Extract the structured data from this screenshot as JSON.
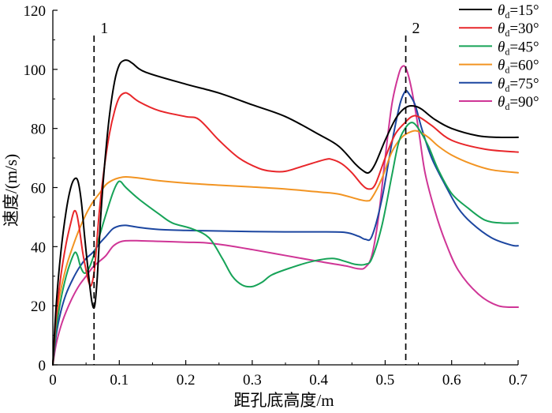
{
  "chart_data": {
    "type": "line",
    "title": "",
    "xlabel": "距孔底高度/m",
    "ylabel": "速度/(m/s)",
    "xlim": [
      0,
      0.7
    ],
    "ylim": [
      0,
      120
    ],
    "xticks": [
      0,
      0.1,
      0.2,
      0.3,
      0.4,
      0.5,
      0.6,
      0.7
    ],
    "yticks": [
      0,
      20,
      40,
      60,
      80,
      100,
      120
    ],
    "xtick_labels": [
      "0",
      "0.1",
      "0.2",
      "0.3",
      "0.4",
      "0.5",
      "0.6",
      "0.7"
    ],
    "ytick_labels": [
      "0",
      "20",
      "40",
      "60",
      "80",
      "100",
      "120"
    ],
    "grid": false,
    "legend_position": "top-right",
    "annotations": [
      {
        "label": "1",
        "x": 0.062,
        "style": "dashed-vertical"
      },
      {
        "label": "2",
        "x": 0.531,
        "style": "dashed-vertical"
      }
    ],
    "series": [
      {
        "name": "θd=15°",
        "legend_main": "θ",
        "legend_sub": "d",
        "legend_rest": "=15°",
        "color": "#000000",
        "points": [
          [
            0,
            0
          ],
          [
            0.005,
            20
          ],
          [
            0.012,
            38
          ],
          [
            0.02,
            52
          ],
          [
            0.027,
            60
          ],
          [
            0.033,
            63
          ],
          [
            0.038,
            62
          ],
          [
            0.043,
            55
          ],
          [
            0.048,
            43
          ],
          [
            0.054,
            30
          ],
          [
            0.059,
            21
          ],
          [
            0.063,
            20
          ],
          [
            0.067,
            30
          ],
          [
            0.072,
            50
          ],
          [
            0.078,
            68
          ],
          [
            0.085,
            84
          ],
          [
            0.093,
            96
          ],
          [
            0.1,
            101.5
          ],
          [
            0.107,
            103
          ],
          [
            0.113,
            103
          ],
          [
            0.12,
            102
          ],
          [
            0.14,
            99
          ],
          [
            0.2,
            95
          ],
          [
            0.25,
            92
          ],
          [
            0.3,
            88
          ],
          [
            0.35,
            84
          ],
          [
            0.4,
            78
          ],
          [
            0.43,
            74
          ],
          [
            0.455,
            68
          ],
          [
            0.465,
            66
          ],
          [
            0.475,
            65
          ],
          [
            0.485,
            68
          ],
          [
            0.5,
            76
          ],
          [
            0.515,
            83
          ],
          [
            0.525,
            86
          ],
          [
            0.535,
            87.5
          ],
          [
            0.545,
            87.5
          ],
          [
            0.555,
            86.5
          ],
          [
            0.575,
            83
          ],
          [
            0.6,
            80
          ],
          [
            0.64,
            77.5
          ],
          [
            0.67,
            77
          ],
          [
            0.7,
            77
          ]
        ]
      },
      {
        "name": "θd=30°",
        "legend_main": "θ",
        "legend_sub": "d",
        "legend_rest": "=30°",
        "color": "#e8262a",
        "points": [
          [
            0,
            0
          ],
          [
            0.005,
            16
          ],
          [
            0.012,
            30
          ],
          [
            0.02,
            41
          ],
          [
            0.027,
            48
          ],
          [
            0.032,
            52
          ],
          [
            0.036,
            51
          ],
          [
            0.04,
            46
          ],
          [
            0.045,
            38
          ],
          [
            0.05,
            32
          ],
          [
            0.054,
            28
          ],
          [
            0.058,
            27
          ],
          [
            0.063,
            33
          ],
          [
            0.07,
            52
          ],
          [
            0.077,
            66
          ],
          [
            0.085,
            78
          ],
          [
            0.093,
            86
          ],
          [
            0.1,
            90.5
          ],
          [
            0.108,
            92
          ],
          [
            0.115,
            91.5
          ],
          [
            0.13,
            89
          ],
          [
            0.16,
            86
          ],
          [
            0.2,
            84
          ],
          [
            0.22,
            83
          ],
          [
            0.25,
            76
          ],
          [
            0.28,
            70
          ],
          [
            0.31,
            66.5
          ],
          [
            0.33,
            65.5
          ],
          [
            0.35,
            65.5
          ],
          [
            0.38,
            67.5
          ],
          [
            0.41,
            69.5
          ],
          [
            0.42,
            69.5
          ],
          [
            0.435,
            68
          ],
          [
            0.45,
            65
          ],
          [
            0.465,
            61
          ],
          [
            0.475,
            59.5
          ],
          [
            0.485,
            61
          ],
          [
            0.5,
            70
          ],
          [
            0.515,
            78
          ],
          [
            0.53,
            82
          ],
          [
            0.54,
            84
          ],
          [
            0.55,
            84
          ],
          [
            0.57,
            81
          ],
          [
            0.6,
            76
          ],
          [
            0.65,
            73
          ],
          [
            0.7,
            72
          ]
        ]
      },
      {
        "name": "θd=45°",
        "legend_main": "θ",
        "legend_sub": "d",
        "legend_rest": "=45°",
        "color": "#17a358",
        "points": [
          [
            0,
            0
          ],
          [
            0.005,
            12
          ],
          [
            0.012,
            22
          ],
          [
            0.02,
            30
          ],
          [
            0.027,
            35
          ],
          [
            0.033,
            38
          ],
          [
            0.037,
            37
          ],
          [
            0.042,
            33
          ],
          [
            0.048,
            31
          ],
          [
            0.055,
            33
          ],
          [
            0.063,
            38
          ],
          [
            0.072,
            45
          ],
          [
            0.08,
            51
          ],
          [
            0.09,
            58
          ],
          [
            0.097,
            61.5
          ],
          [
            0.102,
            62
          ],
          [
            0.11,
            60
          ],
          [
            0.13,
            56
          ],
          [
            0.16,
            51
          ],
          [
            0.18,
            48
          ],
          [
            0.21,
            46
          ],
          [
            0.235,
            43
          ],
          [
            0.255,
            36
          ],
          [
            0.27,
            30
          ],
          [
            0.285,
            27
          ],
          [
            0.3,
            26.5
          ],
          [
            0.315,
            28
          ],
          [
            0.33,
            30.5
          ],
          [
            0.36,
            33
          ],
          [
            0.39,
            35
          ],
          [
            0.42,
            36
          ],
          [
            0.44,
            35
          ],
          [
            0.455,
            34
          ],
          [
            0.47,
            34
          ],
          [
            0.48,
            36
          ],
          [
            0.495,
            47
          ],
          [
            0.51,
            64
          ],
          [
            0.52,
            75
          ],
          [
            0.53,
            80
          ],
          [
            0.54,
            82
          ],
          [
            0.55,
            80
          ],
          [
            0.565,
            74
          ],
          [
            0.58,
            66
          ],
          [
            0.6,
            58
          ],
          [
            0.625,
            53
          ],
          [
            0.65,
            49
          ],
          [
            0.675,
            48
          ],
          [
            0.7,
            48
          ]
        ]
      },
      {
        "name": "θd=60°",
        "legend_main": "θ",
        "legend_sub": "d",
        "legend_rest": "=60°",
        "color": "#f29422",
        "points": [
          [
            0,
            0
          ],
          [
            0.005,
            14
          ],
          [
            0.01,
            23
          ],
          [
            0.02,
            33
          ],
          [
            0.03,
            40
          ],
          [
            0.04,
            46
          ],
          [
            0.05,
            51
          ],
          [
            0.06,
            55
          ],
          [
            0.07,
            58
          ],
          [
            0.08,
            61
          ],
          [
            0.09,
            62.5
          ],
          [
            0.1,
            63.3
          ],
          [
            0.11,
            63.6
          ],
          [
            0.13,
            63.2
          ],
          [
            0.16,
            62.3
          ],
          [
            0.2,
            61.5
          ],
          [
            0.25,
            60.8
          ],
          [
            0.3,
            60.2
          ],
          [
            0.35,
            59.5
          ],
          [
            0.4,
            58.5
          ],
          [
            0.43,
            57.8
          ],
          [
            0.46,
            56
          ],
          [
            0.473,
            55.5
          ],
          [
            0.48,
            56.5
          ],
          [
            0.495,
            63
          ],
          [
            0.51,
            72
          ],
          [
            0.525,
            77
          ],
          [
            0.54,
            79
          ],
          [
            0.55,
            79
          ],
          [
            0.565,
            77
          ],
          [
            0.58,
            74
          ],
          [
            0.6,
            71
          ],
          [
            0.63,
            68
          ],
          [
            0.66,
            66
          ],
          [
            0.7,
            65
          ]
        ]
      },
      {
        "name": "θd=75°",
        "legend_main": "θ",
        "legend_sub": "d",
        "legend_rest": "=75°",
        "color": "#1c46a0",
        "points": [
          [
            0,
            0
          ],
          [
            0.005,
            10
          ],
          [
            0.012,
            18
          ],
          [
            0.02,
            24
          ],
          [
            0.03,
            29
          ],
          [
            0.04,
            33
          ],
          [
            0.05,
            36
          ],
          [
            0.06,
            38
          ],
          [
            0.07,
            41
          ],
          [
            0.08,
            43.5
          ],
          [
            0.09,
            46
          ],
          [
            0.1,
            47
          ],
          [
            0.11,
            47.2
          ],
          [
            0.13,
            46.5
          ],
          [
            0.16,
            45.8
          ],
          [
            0.2,
            45.5
          ],
          [
            0.25,
            45.3
          ],
          [
            0.3,
            45.1
          ],
          [
            0.35,
            45
          ],
          [
            0.4,
            45
          ],
          [
            0.44,
            44.8
          ],
          [
            0.46,
            43.5
          ],
          [
            0.47,
            42.5
          ],
          [
            0.48,
            43.5
          ],
          [
            0.495,
            56
          ],
          [
            0.51,
            75
          ],
          [
            0.522,
            88
          ],
          [
            0.53,
            92.5
          ],
          [
            0.535,
            92
          ],
          [
            0.545,
            88
          ],
          [
            0.555,
            80
          ],
          [
            0.57,
            70
          ],
          [
            0.59,
            61
          ],
          [
            0.61,
            53
          ],
          [
            0.63,
            48
          ],
          [
            0.66,
            43
          ],
          [
            0.69,
            40.5
          ],
          [
            0.7,
            40.3
          ]
        ]
      },
      {
        "name": "θd=90°",
        "legend_main": "θ",
        "legend_sub": "d",
        "legend_rest": "=90°",
        "color": "#cf3596",
        "points": [
          [
            0,
            0
          ],
          [
            0.005,
            7
          ],
          [
            0.012,
            13
          ],
          [
            0.02,
            18
          ],
          [
            0.03,
            23
          ],
          [
            0.04,
            27
          ],
          [
            0.05,
            30
          ],
          [
            0.06,
            33
          ],
          [
            0.07,
            35
          ],
          [
            0.08,
            37
          ],
          [
            0.09,
            40
          ],
          [
            0.1,
            41.5
          ],
          [
            0.11,
            42
          ],
          [
            0.13,
            42
          ],
          [
            0.16,
            41.8
          ],
          [
            0.2,
            41.5
          ],
          [
            0.23,
            41.3
          ],
          [
            0.26,
            40.5
          ],
          [
            0.3,
            39
          ],
          [
            0.35,
            37
          ],
          [
            0.4,
            35
          ],
          [
            0.44,
            33.5
          ],
          [
            0.46,
            32.5
          ],
          [
            0.47,
            33
          ],
          [
            0.48,
            37
          ],
          [
            0.49,
            50
          ],
          [
            0.5,
            70
          ],
          [
            0.51,
            88
          ],
          [
            0.52,
            98
          ],
          [
            0.526,
            101
          ],
          [
            0.532,
            100
          ],
          [
            0.54,
            93
          ],
          [
            0.55,
            80
          ],
          [
            0.56,
            65
          ],
          [
            0.575,
            52
          ],
          [
            0.59,
            42
          ],
          [
            0.61,
            32
          ],
          [
            0.64,
            24
          ],
          [
            0.67,
            20
          ],
          [
            0.7,
            19.5
          ]
        ]
      }
    ]
  }
}
